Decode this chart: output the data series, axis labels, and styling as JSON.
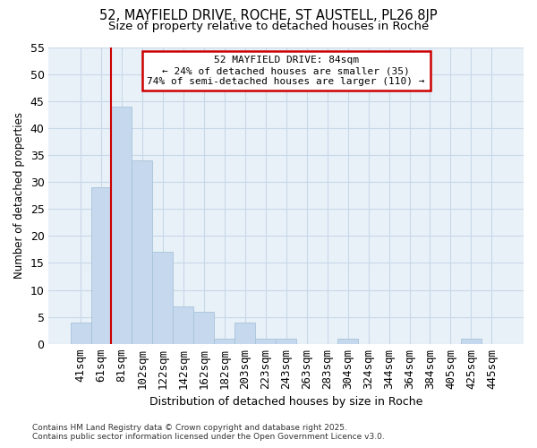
{
  "title1": "52, MAYFIELD DRIVE, ROCHE, ST AUSTELL, PL26 8JP",
  "title2": "Size of property relative to detached houses in Roche",
  "xlabel": "Distribution of detached houses by size in Roche",
  "ylabel": "Number of detached properties",
  "categories": [
    "41sqm",
    "61sqm",
    "81sqm",
    "102sqm",
    "122sqm",
    "142sqm",
    "162sqm",
    "182sqm",
    "203sqm",
    "223sqm",
    "243sqm",
    "263sqm",
    "283sqm",
    "304sqm",
    "324sqm",
    "344sqm",
    "364sqm",
    "384sqm",
    "405sqm",
    "425sqm",
    "445sqm"
  ],
  "values": [
    4,
    29,
    44,
    34,
    17,
    7,
    6,
    1,
    4,
    1,
    1,
    0,
    0,
    1,
    0,
    0,
    0,
    0,
    0,
    1,
    0
  ],
  "bar_color": "#c5d8ed",
  "bar_edge_color": "#a8c4d8",
  "annotation_title": "52 MAYFIELD DRIVE: 84sqm",
  "annotation_line1": "← 24% of detached houses are smaller (35)",
  "annotation_line2": "74% of semi-detached houses are larger (110) →",
  "annotation_box_color": "#ffffff",
  "annotation_box_edge": "#cc0000",
  "vline_color": "#cc0000",
  "grid_color": "#c8d8e8",
  "background_color": "#ffffff",
  "plot_bg_color": "#e8f0f8",
  "ylim": [
    0,
    55
  ],
  "yticks": [
    0,
    5,
    10,
    15,
    20,
    25,
    30,
    35,
    40,
    45,
    50,
    55
  ],
  "footnote1": "Contains HM Land Registry data © Crown copyright and database right 2025.",
  "footnote2": "Contains public sector information licensed under the Open Government Licence v3.0.",
  "vline_bar_index": 2
}
